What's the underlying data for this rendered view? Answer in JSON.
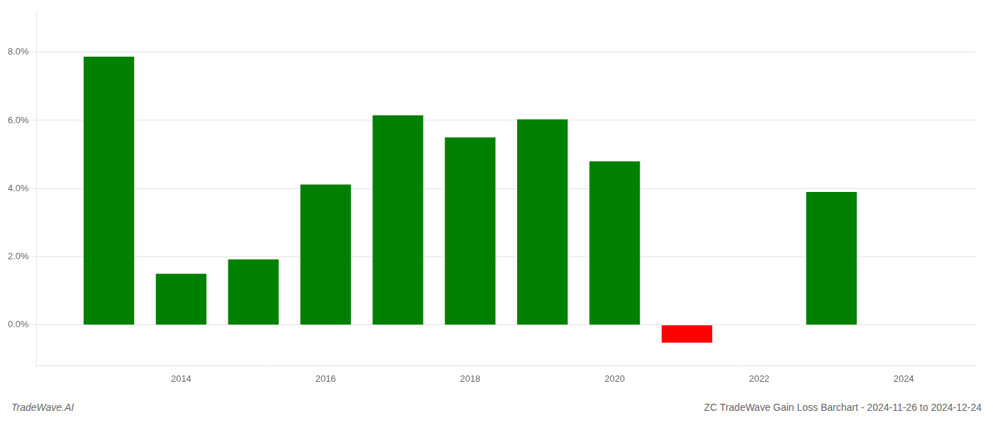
{
  "chart_data": {
    "type": "bar",
    "title": "ZC TradeWave Gain Loss Barchart - 2024-11-26 to 2024-12-24",
    "annotations": [
      "TradeWave.AI"
    ],
    "x": [
      2013,
      2014,
      2015,
      2016,
      2017,
      2018,
      2019,
      2020,
      2021,
      2023
    ],
    "values": [
      0.0787,
      0.015,
      0.0192,
      0.0412,
      0.0615,
      0.055,
      0.0603,
      0.048,
      -0.0052,
      0.039
    ],
    "colors": [
      "#008000",
      "#008000",
      "#008000",
      "#008000",
      "#008000",
      "#008000",
      "#008000",
      "#008000",
      "#ff0000",
      "#008000"
    ],
    "xlim": [
      2012.0,
      2025.0
    ],
    "xticks": [
      2014,
      2016,
      2018,
      2020,
      2022,
      2024
    ],
    "ylim": [
      -0.012,
      0.092
    ],
    "yticks": [
      {
        "value": 0.0,
        "label": "0.0%"
      },
      {
        "value": 0.02,
        "label": "2.0%"
      },
      {
        "value": 0.04,
        "label": "4.0%"
      },
      {
        "value": 0.06,
        "label": "6.0%"
      },
      {
        "value": 0.08,
        "label": "8.0%"
      }
    ],
    "grid": true
  }
}
